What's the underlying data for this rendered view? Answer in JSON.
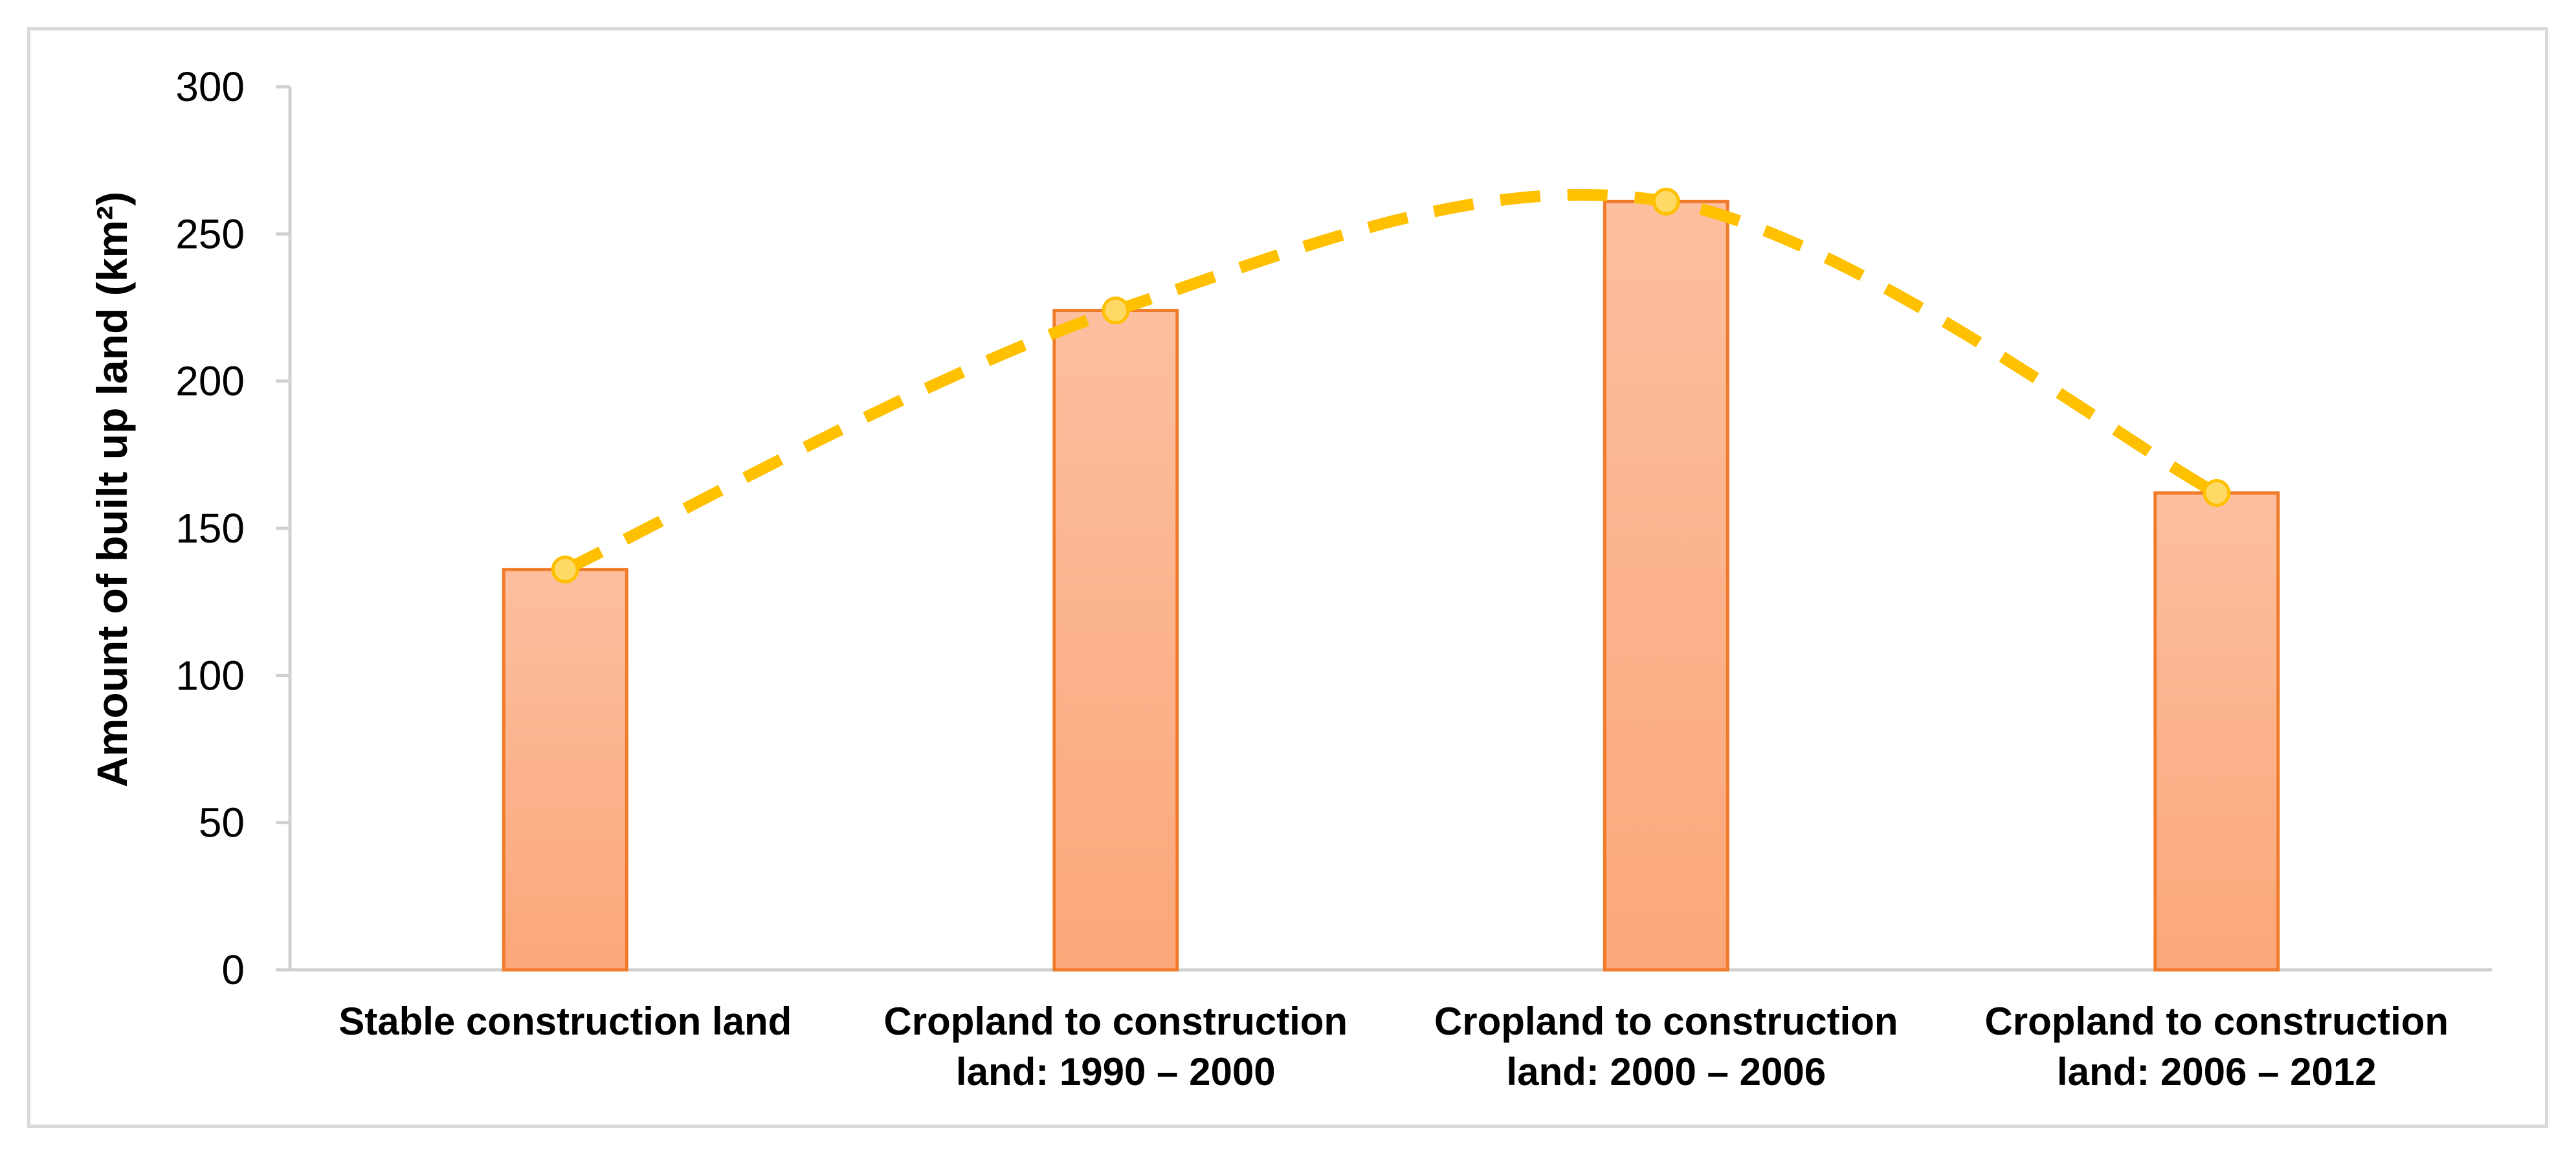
{
  "chart_data": {
    "type": "bar",
    "title": "",
    "xlabel": "",
    "ylabel": "Amount of built up land (km²)",
    "ylim": [
      0,
      300
    ],
    "yticks": [
      0,
      50,
      100,
      150,
      200,
      250,
      300
    ],
    "grid": false,
    "legend": "none",
    "categories": [
      [
        "Stable construction land"
      ],
      [
        "Cropland to construction",
        "land: 1990 – 2000"
      ],
      [
        "Cropland to construction",
        "land: 2000 – 2006"
      ],
      [
        "Cropland to construction",
        "land: 2006 – 2012"
      ]
    ],
    "series": [
      {
        "kind": "bar",
        "values": [
          136,
          224,
          261,
          162
        ],
        "fill_top": "#fcbf9f",
        "fill_bottom": "#fba77a",
        "stroke": "#f07b2a"
      },
      {
        "kind": "smooth-line-dashed",
        "values": [
          136,
          224,
          261,
          162
        ],
        "color": "#ffc000",
        "marker_fill": "#ffd966",
        "marker_stroke": "#ffc000"
      }
    ]
  }
}
